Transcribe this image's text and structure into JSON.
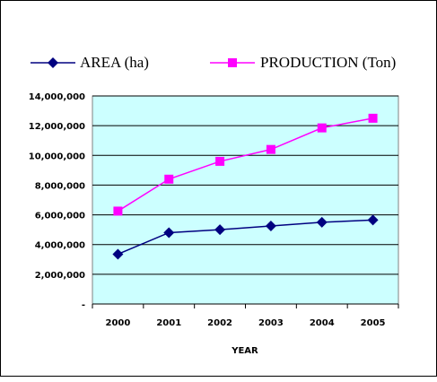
{
  "chart_data": {
    "type": "line",
    "title": "",
    "xlabel": "YEAR",
    "ylabel": "",
    "x": [
      "2000",
      "2001",
      "2002",
      "2003",
      "2004",
      "2005"
    ],
    "ylim": [
      0,
      14000000
    ],
    "yticks": [
      0,
      2000000,
      4000000,
      6000000,
      8000000,
      10000000,
      12000000,
      14000000
    ],
    "ytick_labels": [
      "-",
      "2,000,000",
      "4,000,000",
      "6,000,000",
      "8,000,000",
      "10,000,000",
      "12,000,000",
      "14,000,000"
    ],
    "grid": true,
    "legend_position": "top",
    "plot_background": "#ccffff",
    "series": [
      {
        "name": "AREA (ha)",
        "color": "#000080",
        "marker": "diamond",
        "values": [
          3350000,
          4800000,
          5000000,
          5250000,
          5500000,
          5650000
        ]
      },
      {
        "name": "PRODUCTION (Ton)",
        "color": "#ff00ff",
        "marker": "square",
        "values": [
          6250000,
          8400000,
          9600000,
          10400000,
          11850000,
          12500000
        ]
      }
    ]
  }
}
